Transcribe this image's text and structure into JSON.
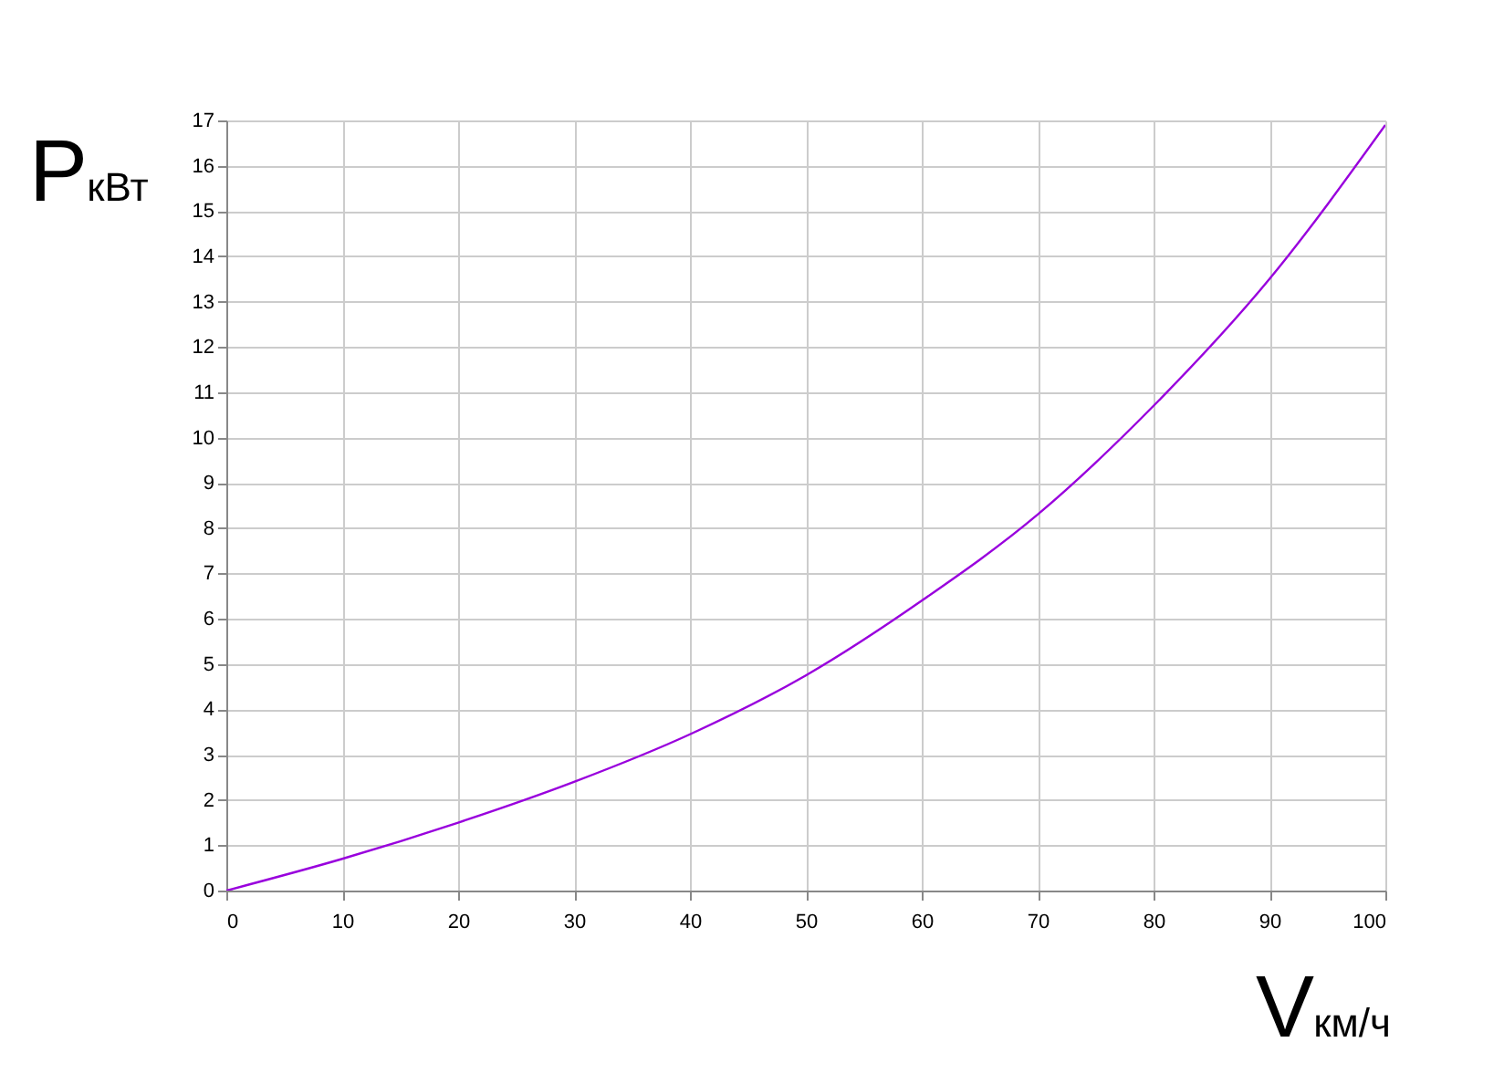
{
  "chart_data": {
    "type": "line",
    "xlabel": "V$_{км/ч}$",
    "ylabel": "P$_{кВт}$",
    "x": [
      0,
      10,
      20,
      30,
      40,
      50,
      60,
      70,
      80,
      90,
      100
    ],
    "series": [
      {
        "color": "#9900dd",
        "values": [
          0,
          0.7,
          1.5,
          2.4,
          3.45,
          4.75,
          6.4,
          8.3,
          10.7,
          13.5,
          16.9
        ]
      }
    ],
    "xlim": [
      0,
      100
    ],
    "xticks": [
      0,
      10,
      20,
      30,
      40,
      50,
      60,
      70,
      80,
      90,
      100
    ],
    "ylim": [
      0,
      17
    ],
    "yticks": [
      0,
      1,
      2,
      3,
      4,
      5,
      6,
      7,
      8,
      9,
      10,
      11,
      12,
      13,
      14,
      15,
      16,
      17
    ],
    "grid": true,
    "marker": "none",
    "line_style": "solid"
  }
}
